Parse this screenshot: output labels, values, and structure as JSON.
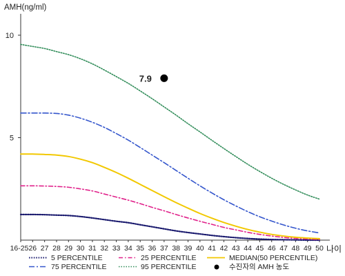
{
  "chart_data": {
    "type": "line",
    "ylabel": "AMH(ng/ml)",
    "xlabel": "나이",
    "ylim": [
      0,
      11
    ],
    "y_ticks": [
      5,
      10
    ],
    "x_categories": [
      "16-25",
      "26",
      "27",
      "28",
      "29",
      "30",
      "31",
      "32",
      "33",
      "34",
      "35",
      "36",
      "37",
      "38",
      "39",
      "40",
      "41",
      "42",
      "43",
      "44",
      "45",
      "46",
      "47",
      "48",
      "49",
      "50"
    ],
    "grid": false,
    "series": [
      {
        "key": "p5",
        "name": "5 PERCENTILE",
        "color": "#1a1a6e",
        "dash": "1.6 1.8",
        "width": 2.2,
        "values": [
          1.25,
          1.25,
          1.24,
          1.22,
          1.2,
          1.15,
          1.08,
          1.0,
          0.92,
          0.85,
          0.75,
          0.65,
          0.55,
          0.45,
          0.37,
          0.3,
          0.23,
          0.17,
          0.12,
          0.08,
          0.05,
          0.03,
          0.02,
          0.01,
          0.0,
          0.0
        ]
      },
      {
        "key": "p25",
        "name": "25 PERCENTILE",
        "color": "#e0208a",
        "dash": "6 3 1.5 3",
        "width": 1.6,
        "values": [
          2.65,
          2.65,
          2.64,
          2.62,
          2.58,
          2.5,
          2.4,
          2.25,
          2.1,
          1.95,
          1.78,
          1.6,
          1.43,
          1.25,
          1.08,
          0.92,
          0.77,
          0.62,
          0.5,
          0.38,
          0.28,
          0.2,
          0.13,
          0.08,
          0.05,
          0.03
        ]
      },
      {
        "key": "median",
        "name": "MEDIAN(50 PERCENTILE)",
        "color": "#f2c800",
        "dash": "",
        "width": 2,
        "values": [
          4.2,
          4.2,
          4.18,
          4.15,
          4.08,
          3.95,
          3.78,
          3.55,
          3.3,
          3.02,
          2.72,
          2.42,
          2.12,
          1.83,
          1.56,
          1.3,
          1.07,
          0.86,
          0.68,
          0.52,
          0.39,
          0.28,
          0.2,
          0.14,
          0.1,
          0.07
        ]
      },
      {
        "key": "p75",
        "name": "75 PERCENTILE",
        "color": "#3355cc",
        "dash": "8 3 2 3",
        "width": 1.6,
        "values": [
          6.2,
          6.2,
          6.2,
          6.18,
          6.1,
          5.95,
          5.75,
          5.5,
          5.2,
          4.88,
          4.52,
          4.15,
          3.78,
          3.4,
          3.02,
          2.65,
          2.3,
          1.97,
          1.67,
          1.39,
          1.14,
          0.93,
          0.74,
          0.58,
          0.45,
          0.35
        ]
      },
      {
        "key": "p95",
        "name": "95 PERCENTILE",
        "color": "#2e8b57",
        "dash": "1.5 2",
        "width": 1.6,
        "values": [
          9.55,
          9.45,
          9.35,
          9.2,
          9.05,
          8.85,
          8.6,
          8.3,
          7.98,
          7.65,
          7.28,
          6.9,
          6.5,
          6.1,
          5.68,
          5.28,
          4.87,
          4.47,
          4.08,
          3.7,
          3.35,
          3.02,
          2.72,
          2.45,
          2.2,
          2.0
        ]
      }
    ],
    "marker": {
      "name": "수진자의 AMH 농도",
      "x": "37",
      "y": 7.9,
      "label": "7.9",
      "color": "#000000"
    },
    "legend": {
      "placement": "bottom",
      "items": [
        {
          "series": "p5",
          "text": "5 PERCENTILE"
        },
        {
          "series": "p25",
          "text": "25 PERCENTILE"
        },
        {
          "series": "median",
          "text": "MEDIAN(50 PERCENTILE)"
        },
        {
          "series": "p75",
          "text": "75 PERCENTILE"
        },
        {
          "series": "p95",
          "text": "95 PERCENTILE"
        },
        {
          "series": "marker",
          "text": "수진자의 AMH 농도"
        }
      ]
    }
  }
}
